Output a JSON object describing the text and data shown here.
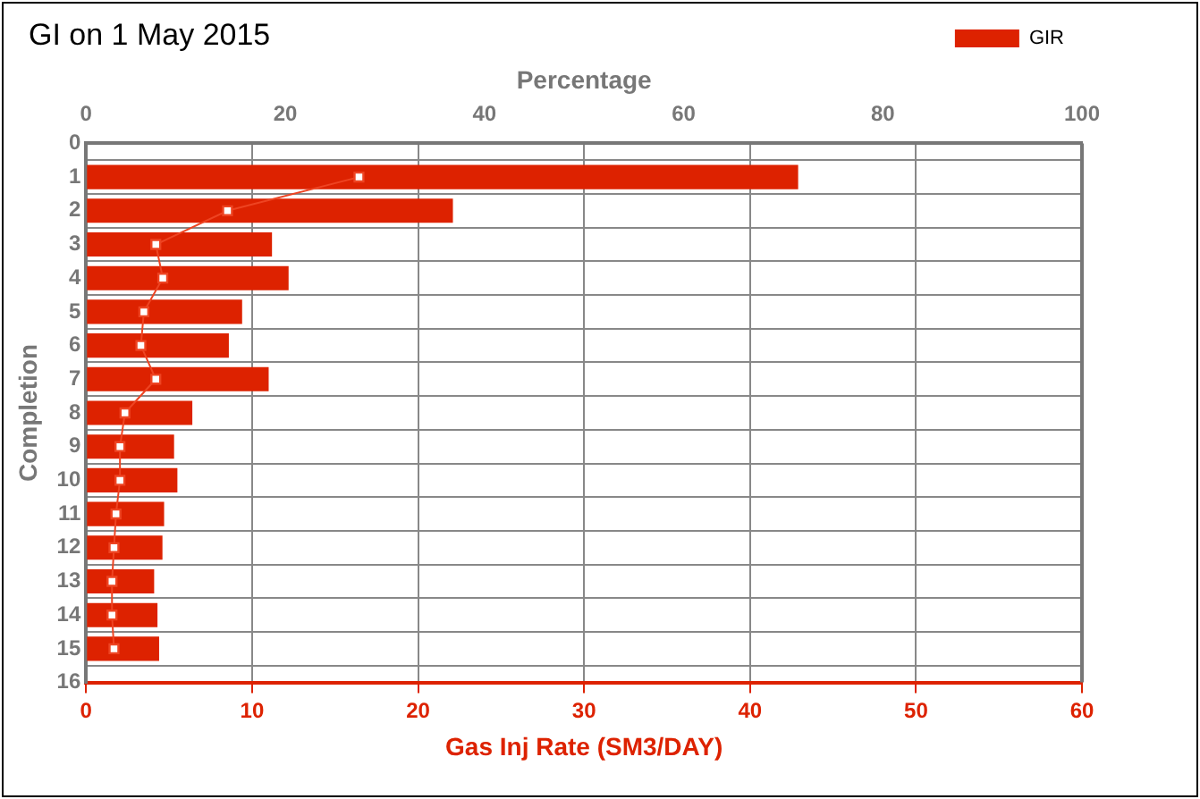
{
  "chart_data": {
    "type": "bar",
    "title": "GI on 1 May 2015",
    "orientation": "horizontal",
    "xlabel": "Gas Inj Rate (SM3/DAY)",
    "ylabel": "Completion",
    "x2label": "Percentage",
    "categories": [
      "0",
      "1",
      "2",
      "3",
      "4",
      "5",
      "6",
      "7",
      "8",
      "9",
      "10",
      "11",
      "12",
      "13",
      "14",
      "15",
      "16"
    ],
    "series": [
      {
        "name": "GIR",
        "color": "#dd2200",
        "values": [
          null,
          42.9,
          22.1,
          11.2,
          12.2,
          9.4,
          8.6,
          11.0,
          6.4,
          5.3,
          5.5,
          4.7,
          4.6,
          4.1,
          4.3,
          4.4,
          null
        ]
      },
      {
        "type": "line",
        "axis": "x2",
        "color": "#ee4422",
        "marker": "square",
        "values": [
          null,
          27.4,
          14.2,
          7.0,
          7.7,
          5.8,
          5.5,
          7.0,
          3.9,
          3.4,
          3.4,
          3.0,
          2.8,
          2.6,
          2.6,
          2.8,
          null
        ]
      }
    ],
    "xlim": [
      0,
      60
    ],
    "xticks": [
      0,
      10,
      20,
      30,
      40,
      50,
      60
    ],
    "x2lim": [
      0,
      100
    ],
    "x2ticks": [
      0,
      20,
      40,
      60,
      80,
      100
    ],
    "grid": true,
    "legend": "top right"
  }
}
